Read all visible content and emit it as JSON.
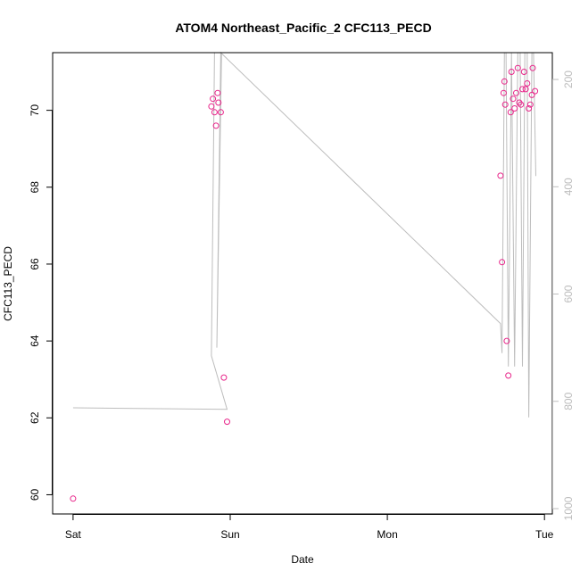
{
  "chart_data": {
    "type": "scatter",
    "title": "ATOM4 Northeast_Pacific_2 CFC113_PECD",
    "xlabel": "Date",
    "ylabel": "CFC113_PECD",
    "x_ticks": [
      {
        "day": 0,
        "label": "Sat"
      },
      {
        "day": 1,
        "label": "Sun"
      },
      {
        "day": 2,
        "label": "Mon"
      },
      {
        "day": 3,
        "label": "Tue"
      }
    ],
    "y_ticks": [
      60,
      62,
      64,
      66,
      68,
      70
    ],
    "ylim": [
      59.5,
      71.5
    ],
    "xlim": [
      -0.13,
      3.05
    ],
    "y2_ticks": [
      200,
      400,
      600,
      800,
      1000
    ],
    "y2lim": [
      1010,
      150
    ],
    "colors": {
      "points": "#e8258a",
      "depth_line": "#bdbdbd",
      "frame": "#000000"
    },
    "series": [
      {
        "values": [
          {
            "x": 0.0,
            "y": 59.9
          },
          {
            "x": 0.88,
            "y": 70.1
          },
          {
            "x": 0.89,
            "y": 70.3
          },
          {
            "x": 0.9,
            "y": 69.95
          },
          {
            "x": 0.91,
            "y": 69.6
          },
          {
            "x": 0.92,
            "y": 70.45
          },
          {
            "x": 0.925,
            "y": 70.2
          },
          {
            "x": 0.94,
            "y": 69.95
          },
          {
            "x": 0.96,
            "y": 63.05
          },
          {
            "x": 0.98,
            "y": 61.9
          },
          {
            "x": 2.72,
            "y": 68.3
          },
          {
            "x": 2.73,
            "y": 66.05
          },
          {
            "x": 2.74,
            "y": 70.45
          },
          {
            "x": 2.745,
            "y": 70.75
          },
          {
            "x": 2.75,
            "y": 70.15
          },
          {
            "x": 2.76,
            "y": 64.0
          },
          {
            "x": 2.77,
            "y": 63.1
          },
          {
            "x": 2.785,
            "y": 69.95
          },
          {
            "x": 2.79,
            "y": 71.0
          },
          {
            "x": 2.8,
            "y": 70.3
          },
          {
            "x": 2.81,
            "y": 70.05
          },
          {
            "x": 2.82,
            "y": 70.45
          },
          {
            "x": 2.83,
            "y": 71.1
          },
          {
            "x": 2.84,
            "y": 70.2
          },
          {
            "x": 2.85,
            "y": 70.15
          },
          {
            "x": 2.86,
            "y": 70.55
          },
          {
            "x": 2.87,
            "y": 71.0
          },
          {
            "x": 2.88,
            "y": 70.55
          },
          {
            "x": 2.89,
            "y": 70.7
          },
          {
            "x": 2.9,
            "y": 70.05
          },
          {
            "x": 2.91,
            "y": 70.15
          },
          {
            "x": 2.92,
            "y": 70.4
          },
          {
            "x": 2.925,
            "y": 71.1
          },
          {
            "x": 2.94,
            "y": 70.5
          }
        ]
      },
      {
        "axis": "right",
        "values": [
          {
            "x": 0.0,
            "y": 812
          },
          {
            "x": 0.98,
            "y": 815
          },
          {
            "x": 0.88,
            "y": 715
          },
          {
            "x": 0.9,
            "y": 150
          },
          {
            "x": 0.905,
            "y": 150
          },
          {
            "x": 0.91,
            "y": 150
          },
          {
            "x": 0.915,
            "y": 150
          },
          {
            "x": 0.93,
            "y": 150
          },
          {
            "x": 0.935,
            "y": 150
          },
          {
            "x": 0.94,
            "y": 150
          },
          {
            "x": 0.945,
            "y": 150
          },
          {
            "x": 0.915,
            "y": 700
          },
          {
            "x": 0.94,
            "y": 150
          },
          {
            "x": 2.72,
            "y": 655
          },
          {
            "x": 2.73,
            "y": 710
          },
          {
            "x": 2.745,
            "y": 150
          },
          {
            "x": 2.755,
            "y": 150
          },
          {
            "x": 2.77,
            "y": 735
          },
          {
            "x": 2.79,
            "y": 150
          },
          {
            "x": 2.81,
            "y": 735
          },
          {
            "x": 2.83,
            "y": 150
          },
          {
            "x": 2.845,
            "y": 150
          },
          {
            "x": 2.86,
            "y": 735
          },
          {
            "x": 2.875,
            "y": 150
          },
          {
            "x": 2.89,
            "y": 150
          },
          {
            "x": 2.9,
            "y": 830
          },
          {
            "x": 2.92,
            "y": 150
          },
          {
            "x": 2.93,
            "y": 150
          },
          {
            "x": 2.945,
            "y": 380
          }
        ]
      }
    ]
  }
}
